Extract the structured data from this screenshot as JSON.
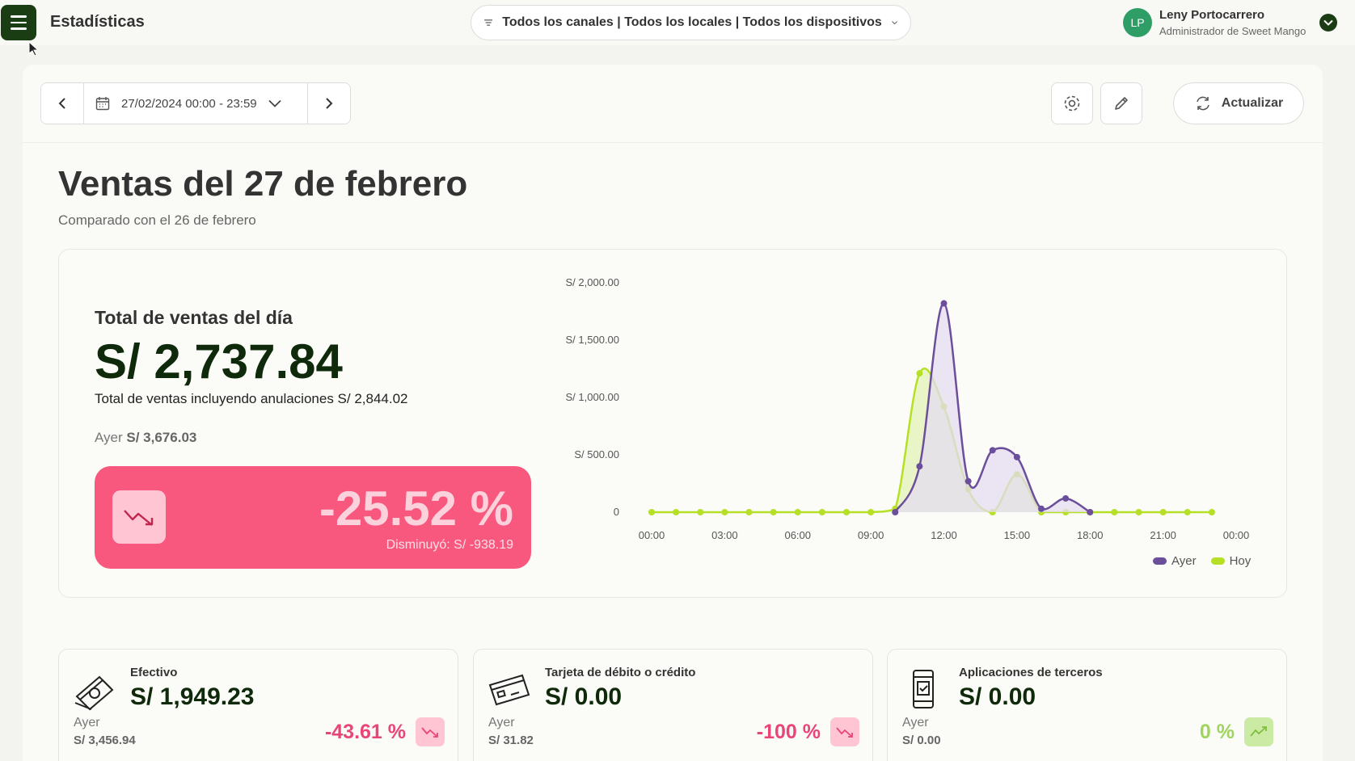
{
  "header": {
    "app_title": "Estadísticas",
    "filter_label": "Todos los canales | Todos los locales | Todos los dispositivos",
    "user_initials": "LP",
    "user_name": "Leny Portocarrero",
    "user_role": "Administrador de Sweet Mango"
  },
  "toolbar": {
    "date_range": "27/02/2024 00:00 - 23:59",
    "refresh_label": "Actualizar"
  },
  "page": {
    "title": "Ventas del 27 de febrero",
    "subtitle": "Comparado con el 26 de febrero"
  },
  "sales": {
    "total_label": "Total de ventas del día",
    "total_value": "S/ 2,737.84",
    "total_including_voids": "Total de ventas incluyendo anulaciones S/ 2,844.02",
    "yesterday_label": "Ayer",
    "yesterday_value": "S/ 3,676.03",
    "change_percent": "-25.52 %",
    "change_detail": "Disminuyó: S/ -938.19"
  },
  "chart_data": {
    "type": "area",
    "x": [
      "00:00",
      "01:00",
      "02:00",
      "03:00",
      "04:00",
      "05:00",
      "06:00",
      "07:00",
      "08:00",
      "09:00",
      "10:00",
      "11:00",
      "12:00",
      "13:00",
      "14:00",
      "15:00",
      "16:00",
      "17:00",
      "18:00",
      "19:00",
      "20:00",
      "21:00",
      "22:00",
      "23:00"
    ],
    "x_tick_labels": [
      "00:00",
      "03:00",
      "06:00",
      "09:00",
      "12:00",
      "15:00",
      "18:00",
      "21:00",
      "00:00"
    ],
    "y_tick_labels": [
      "S/ 2,000.00",
      "S/ 1,500.00",
      "S/ 1,000.00",
      "S/ 500.00",
      "0"
    ],
    "ylim": [
      0,
      2000
    ],
    "series": [
      {
        "name": "Ayer",
        "color": "#6b4f9a",
        "fill": "#e4dcf1",
        "values": [
          null,
          null,
          null,
          null,
          null,
          null,
          null,
          null,
          null,
          null,
          0,
          400,
          1820,
          270,
          540,
          480,
          30,
          120,
          0,
          null,
          null,
          null,
          null,
          null
        ]
      },
      {
        "name": "Hoy",
        "color": "#b5e026",
        "fill": "#e3f3b6",
        "values": [
          0,
          0,
          0,
          0,
          0,
          0,
          0,
          0,
          0,
          0,
          30,
          1210,
          920,
          200,
          0,
          330,
          0,
          0,
          0,
          0,
          0,
          0,
          0,
          0
        ]
      }
    ],
    "legend_position": "bottom-right"
  },
  "payments": [
    {
      "name": "Efectivo",
      "value": "S/ 1,949.23",
      "yesterday_label": "Ayer",
      "yesterday_value": "S/ 3,456.94",
      "change": "-43.61 %",
      "icon": "cash-icon"
    },
    {
      "name": "Tarjeta de débito o crédito",
      "value": "S/ 0.00",
      "yesterday_label": "Ayer",
      "yesterday_value": "S/ 31.82",
      "change": "-100 %",
      "icon": "card-icon"
    },
    {
      "name": "Aplicaciones de terceros",
      "value": "S/ 0.00",
      "yesterday_label": "Ayer",
      "yesterday_value": "S/ 0.00",
      "change": "0 %",
      "icon": "phone-app-icon"
    }
  ]
}
